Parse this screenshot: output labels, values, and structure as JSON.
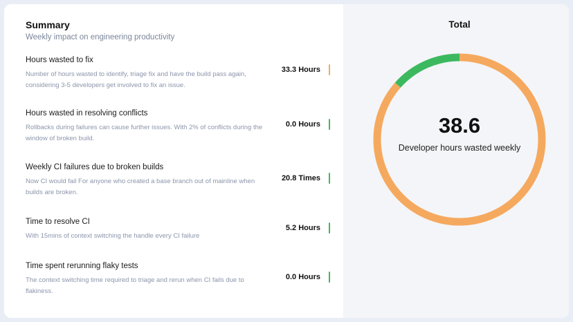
{
  "summary": {
    "title": "Summary",
    "subtitle": "Weekly impact on engineering productivity",
    "items": [
      {
        "title": "Hours wasted to fix",
        "description": "Number of hours wasted to identify, triage fix and have the build pass again, considering 3-5 developers get involved to fix an issue.",
        "value": "33.3 Hours",
        "indicator_color": "#f5a95e"
      },
      {
        "title": "Hours wasted in resolving conflicts",
        "description": "Rollbacks during failures can cause further issues. With 2% of conflicts during the window of broken build.",
        "value": "0.0 Hours",
        "indicator_color": "#3cb95e"
      },
      {
        "title": "Weekly CI failures due to broken builds",
        "description": "Now CI would fail For anyone who created a base branch out of mainline when builds are broken.",
        "value": "20.8 Times",
        "indicator_color": "#3cb95e"
      },
      {
        "title": "Time to resolve CI",
        "description": "With 15mins of context switching the handle every CI failure",
        "value": "5.2 Hours",
        "indicator_color": "#3cb95e"
      },
      {
        "title": "Time spent rerunning flaky tests",
        "description": "The context switching time required to triage and rerun when CI fails due to flakiness.",
        "value": "0.0 Hours",
        "indicator_color": "#3cb95e"
      }
    ]
  },
  "total": {
    "title": "Total",
    "value": "38.6",
    "label": "Developer hours wasted weekly",
    "segments": [
      {
        "value": 33.3,
        "color": "#f5a95e"
      },
      {
        "value": 5.2,
        "color": "#3cb95e"
      }
    ]
  }
}
